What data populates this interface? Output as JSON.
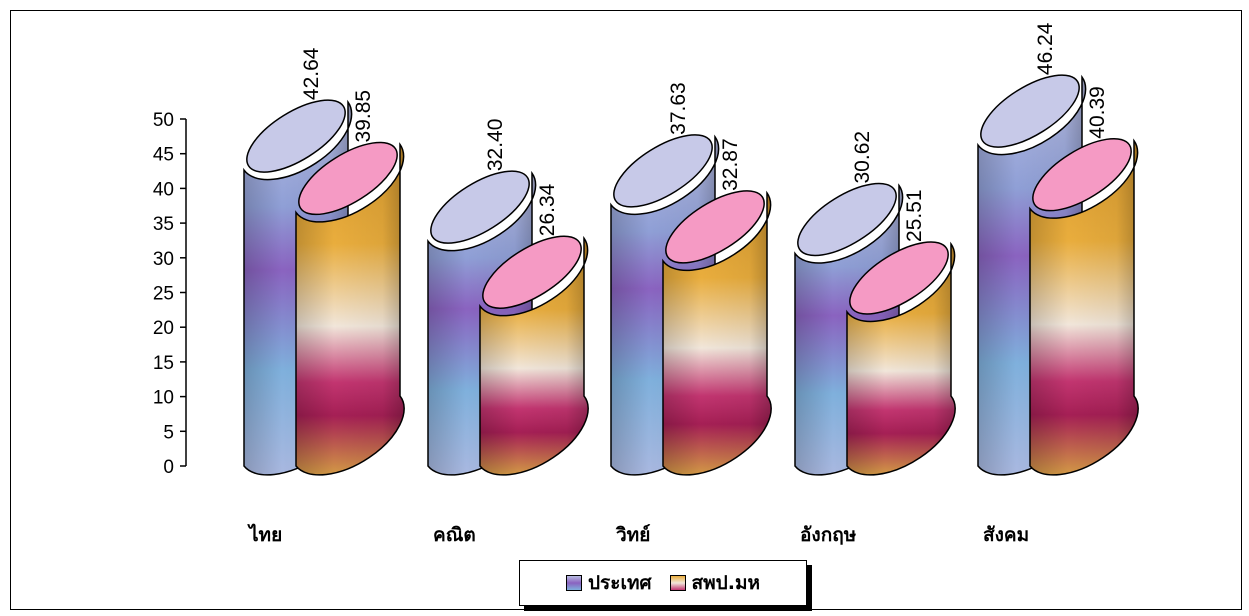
{
  "chart_data": {
    "type": "bar",
    "categories": [
      "ไทย",
      "คณิต",
      "วิทย์",
      "อังกฤษ",
      "สังคม"
    ],
    "series": [
      {
        "name": "ประเทศ",
        "values": [
          42.64,
          32.4,
          37.63,
          30.62,
          46.24
        ],
        "labels": [
          "42.64",
          "32.40",
          "37.63",
          "30.62",
          "46.24"
        ]
      },
      {
        "name": "สพป.มห",
        "values": [
          39.85,
          26.34,
          32.87,
          25.51,
          40.39
        ],
        "labels": [
          "39.85",
          "26.34",
          "32.87",
          "25.51",
          "40.39"
        ]
      }
    ],
    "yticks": [
      "0",
      "5",
      "10",
      "15",
      "20",
      "25",
      "30",
      "35",
      "40",
      "45",
      "50"
    ],
    "ylim": [
      0,
      50
    ],
    "grid": false,
    "legend_position": "bottom-center",
    "bar_shape": "cylinder",
    "colors": {
      "series1": [
        "#b8bde2",
        "#8f9fd6",
        "#8a63c0",
        "#7fb0dc",
        "#a9b8e0"
      ],
      "series1_top": "#c7c9e8",
      "series2": [
        "#d89a2e",
        "#e9ad3d",
        "#f1e6da",
        "#c23570",
        "#d39a46"
      ],
      "series2_top": "#f59ac4"
    }
  }
}
